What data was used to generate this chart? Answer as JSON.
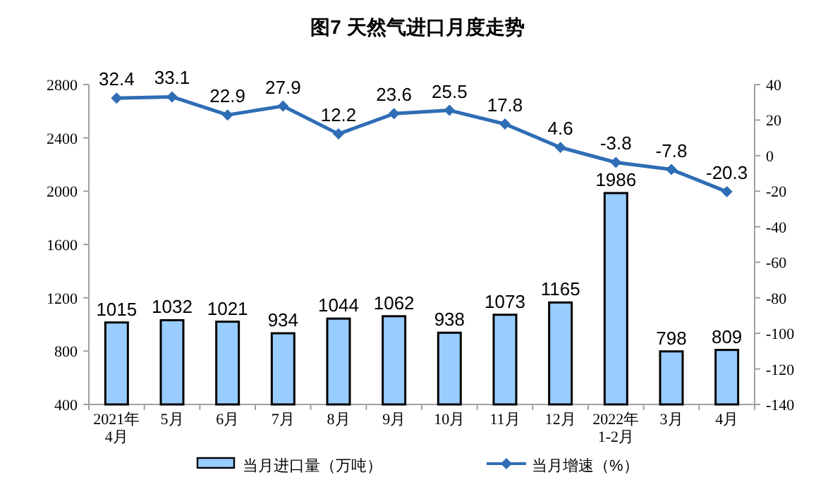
{
  "chart_data": {
    "type": "bar",
    "title": "图7 天然气进口月度走势",
    "categories": [
      "2021年\n4月",
      "5月",
      "6月",
      "7月",
      "8月",
      "9月",
      "10月",
      "11月",
      "12月",
      "2022年\n1-2月",
      "3月",
      "4月"
    ],
    "series": [
      {
        "name": "当月进口量（万吨）",
        "color": "#99ccff",
        "values": [
          1015,
          1032,
          1021,
          934,
          1044,
          1062,
          938,
          1073,
          1165,
          1986,
          798,
          809
        ]
      },
      {
        "name": "当月增速（%）",
        "type": "line",
        "axis": "y2",
        "color": "#2f6db5",
        "marker": "diamond",
        "values": [
          32.4,
          33.1,
          22.9,
          27.9,
          12.2,
          23.6,
          25.5,
          17.8,
          4.6,
          -3.8,
          -7.8,
          -20.3
        ]
      }
    ],
    "ylim": [
      400,
      2800
    ],
    "yticks": [
      400,
      800,
      1200,
      1600,
      2000,
      2400,
      2800
    ],
    "y2lim": [
      -140,
      40
    ],
    "y2ticks": [
      -140,
      -120,
      -100,
      -80,
      -60,
      -40,
      -20,
      0,
      20,
      40
    ],
    "data_labels": true,
    "legend": "bottom",
    "grid": false
  }
}
